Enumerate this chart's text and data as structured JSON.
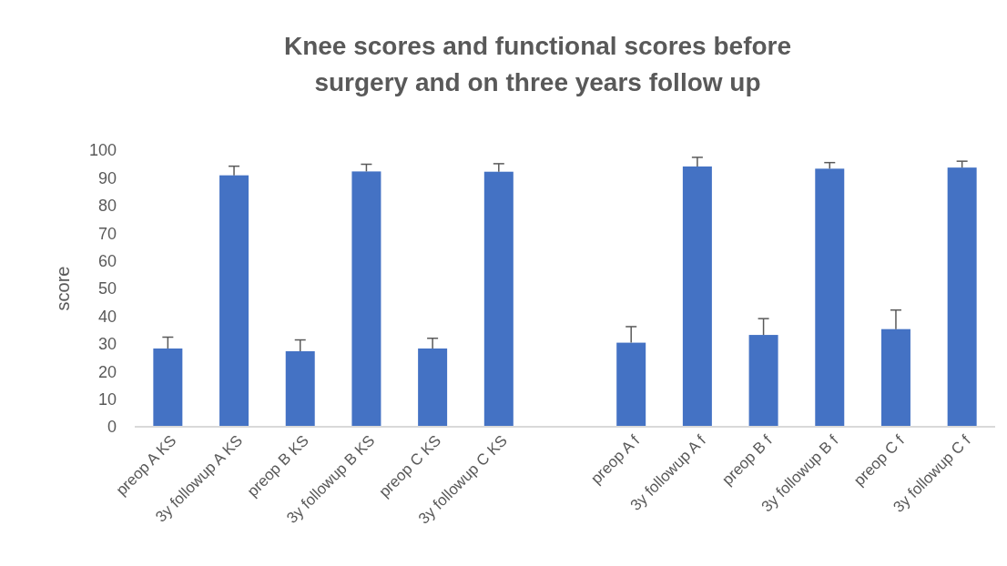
{
  "chart_data": {
    "type": "bar",
    "title": "Knee scores and functional scores before surgery and on three years follow up",
    "ylabel": "score",
    "categories": [
      "preop A KS",
      "3y followup A KS",
      "preop B KS",
      "3y followup B KS",
      "preop C KS",
      "3y followup C KS",
      null,
      "preop A f",
      "3y followup A f",
      "preop B f",
      "3y followup B f",
      "preop C f",
      "3y followup C f"
    ],
    "values": [
      28.3,
      90.9,
      27.3,
      92.3,
      28.3,
      92.2,
      null,
      30.4,
      94.1,
      33.2,
      93.3,
      35.3,
      93.7
    ],
    "errors": [
      [
        28.3,
        32.4
      ],
      [
        90.9,
        94.2
      ],
      [
        27.3,
        31.4
      ],
      [
        92.3,
        94.9
      ],
      [
        28.3,
        32
      ],
      [
        92.2,
        95.1
      ],
      null,
      [
        30.4,
        36.2
      ],
      [
        94.1,
        97.4
      ],
      [
        33.2,
        39.1
      ],
      [
        93.3,
        95.5
      ],
      [
        35.3,
        42.2
      ],
      [
        93.7,
        96
      ]
    ],
    "color": "#4472c4",
    "ylim": [
      0,
      100
    ],
    "yticks": [
      0,
      10,
      20,
      30,
      40,
      50,
      60,
      70,
      80,
      90,
      100
    ],
    "grid": false
  }
}
